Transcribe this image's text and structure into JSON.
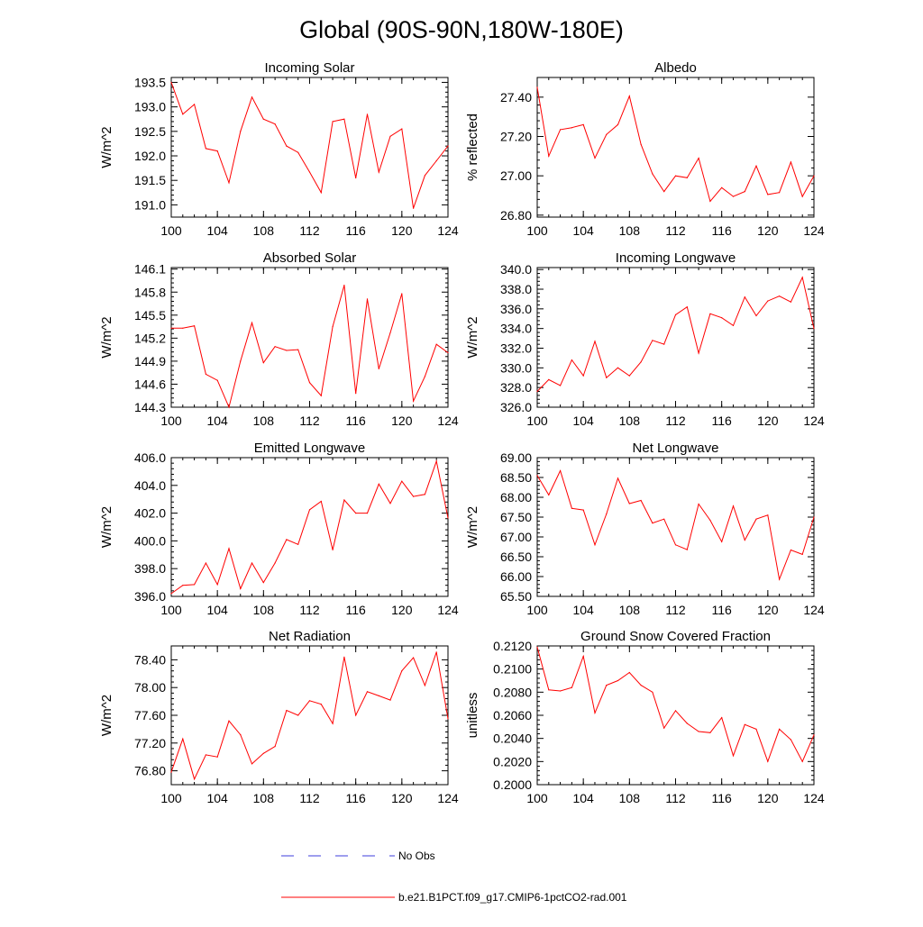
{
  "figure_title": "Global (90S-90N,180W-180E)",
  "legend": [
    {
      "label": "No Obs",
      "color": "#3c3cdc",
      "style": "dashed"
    },
    {
      "label": "b.e21.B1PCT.f09_g17.CMIP6-1pctCO2-rad.001",
      "color": "#ff0000",
      "style": "solid"
    }
  ],
  "chart_data": [
    {
      "type": "line",
      "title": "Incoming Solar",
      "ylabel": "W/m^2",
      "xlim": [
        100,
        124
      ],
      "xticks": [
        "100",
        "104",
        "108",
        "112",
        "116",
        "120",
        "124"
      ],
      "ylim": [
        190.75,
        193.6
      ],
      "yticks": [
        "191.0",
        "191.5",
        "192.0",
        "192.5",
        "193.0",
        "193.5"
      ],
      "x": [
        100,
        101,
        102,
        103,
        104,
        105,
        106,
        107,
        108,
        109,
        110,
        111,
        112,
        113,
        114,
        115,
        116,
        117,
        118,
        119,
        120,
        121,
        122,
        123,
        124
      ],
      "series": [
        {
          "color": "#ff0000",
          "values": [
            193.5,
            192.85,
            193.05,
            192.15,
            192.1,
            191.45,
            192.5,
            193.2,
            192.75,
            192.65,
            192.2,
            192.07,
            191.67,
            191.25,
            192.7,
            192.75,
            191.55,
            192.85,
            191.67,
            192.4,
            192.55,
            190.93,
            191.6,
            191.9,
            192.2
          ]
        }
      ]
    },
    {
      "type": "line",
      "title": "Albedo",
      "ylabel": "% reflected",
      "xlim": [
        100,
        124
      ],
      "xticks": [
        "100",
        "104",
        "108",
        "112",
        "116",
        "120",
        "124"
      ],
      "ylim": [
        26.79,
        27.5
      ],
      "yticks": [
        "26.80",
        "27.00",
        "27.20",
        "27.40"
      ],
      "x": [
        100,
        101,
        102,
        103,
        104,
        105,
        106,
        107,
        108,
        109,
        110,
        111,
        112,
        113,
        114,
        115,
        116,
        117,
        118,
        119,
        120,
        121,
        122,
        123,
        124
      ],
      "series": [
        {
          "color": "#ff0000",
          "values": [
            27.45,
            27.1,
            27.235,
            27.245,
            27.26,
            27.09,
            27.21,
            27.26,
            27.405,
            27.16,
            27.01,
            26.92,
            27.0,
            26.99,
            27.09,
            26.87,
            26.94,
            26.895,
            26.92,
            27.05,
            26.905,
            26.915,
            27.07,
            26.895,
            27.0
          ]
        }
      ]
    },
    {
      "type": "line",
      "title": "Absorbed Solar",
      "ylabel": "W/m^2",
      "xlim": [
        100,
        124
      ],
      "xticks": [
        "100",
        "104",
        "108",
        "112",
        "116",
        "120",
        "124"
      ],
      "ylim": [
        144.3,
        146.12
      ],
      "yticks": [
        "144.3",
        "144.6",
        "144.9",
        "145.2",
        "145.5",
        "145.8",
        "146.1"
      ],
      "x": [
        100,
        101,
        102,
        103,
        104,
        105,
        106,
        107,
        108,
        109,
        110,
        111,
        112,
        113,
        114,
        115,
        116,
        117,
        118,
        119,
        120,
        121,
        122,
        123,
        124
      ],
      "series": [
        {
          "color": "#ff0000",
          "values": [
            145.33,
            145.33,
            145.36,
            144.73,
            144.65,
            144.3,
            144.9,
            145.4,
            144.88,
            145.09,
            145.04,
            145.05,
            144.62,
            144.45,
            145.35,
            145.89,
            144.48,
            145.71,
            144.8,
            145.27,
            145.78,
            144.38,
            144.7,
            145.12,
            145.01
          ]
        }
      ]
    },
    {
      "type": "line",
      "title": "Incoming Longwave",
      "ylabel": "W/m^2",
      "xlim": [
        100,
        124
      ],
      "xticks": [
        "100",
        "104",
        "108",
        "112",
        "116",
        "120",
        "124"
      ],
      "ylim": [
        326.0,
        340.2
      ],
      "yticks": [
        "326.0",
        "328.0",
        "330.0",
        "332.0",
        "334.0",
        "336.0",
        "338.0",
        "340.0"
      ],
      "x": [
        100,
        101,
        102,
        103,
        104,
        105,
        106,
        107,
        108,
        109,
        110,
        111,
        112,
        113,
        114,
        115,
        116,
        117,
        118,
        119,
        120,
        121,
        122,
        123,
        124
      ],
      "series": [
        {
          "color": "#ff0000",
          "values": [
            327.6,
            328.8,
            328.2,
            330.8,
            329.2,
            332.7,
            329.0,
            330.0,
            329.2,
            330.6,
            332.8,
            332.4,
            335.4,
            336.2,
            331.5,
            335.5,
            335.1,
            334.3,
            337.2,
            335.3,
            336.8,
            337.3,
            336.7,
            339.2,
            334.0
          ]
        }
      ]
    },
    {
      "type": "line",
      "title": "Emitted Longwave",
      "ylabel": "W/m^2",
      "xlim": [
        100,
        124
      ],
      "xticks": [
        "100",
        "104",
        "108",
        "112",
        "116",
        "120",
        "124"
      ],
      "ylim": [
        396.0,
        406.0
      ],
      "yticks": [
        "396.0",
        "398.0",
        "400.0",
        "402.0",
        "404.0",
        "406.0"
      ],
      "x": [
        100,
        101,
        102,
        103,
        104,
        105,
        106,
        107,
        108,
        109,
        110,
        111,
        112,
        113,
        114,
        115,
        116,
        117,
        118,
        119,
        120,
        121,
        122,
        123,
        124
      ],
      "series": [
        {
          "color": "#ff0000",
          "values": [
            396.2,
            396.8,
            396.85,
            398.4,
            396.85,
            399.45,
            396.55,
            398.4,
            397.0,
            398.4,
            400.1,
            399.75,
            402.25,
            402.85,
            399.35,
            402.95,
            402.0,
            402.0,
            404.1,
            402.7,
            404.3,
            403.2,
            403.35,
            405.75,
            401.65
          ]
        }
      ]
    },
    {
      "type": "line",
      "title": "Net Longwave",
      "ylabel": "W/m^2",
      "xlim": [
        100,
        124
      ],
      "xticks": [
        "100",
        "104",
        "108",
        "112",
        "116",
        "120",
        "124"
      ],
      "ylim": [
        65.5,
        69.0
      ],
      "yticks": [
        "65.50",
        "66.00",
        "66.50",
        "67.00",
        "67.50",
        "68.00",
        "68.50",
        "69.00"
      ],
      "x": [
        100,
        101,
        102,
        103,
        104,
        105,
        106,
        107,
        108,
        109,
        110,
        111,
        112,
        113,
        114,
        115,
        116,
        117,
        118,
        119,
        120,
        121,
        122,
        123,
        124
      ],
      "series": [
        {
          "color": "#ff0000",
          "values": [
            68.55,
            68.06,
            68.67,
            67.72,
            67.68,
            66.8,
            67.58,
            68.48,
            67.84,
            67.92,
            67.35,
            67.45,
            66.8,
            66.68,
            67.83,
            67.42,
            66.88,
            67.78,
            66.92,
            67.45,
            67.55,
            65.93,
            66.67,
            66.56,
            67.5
          ]
        }
      ]
    },
    {
      "type": "line",
      "title": "Net Radiation",
      "ylabel": "W/m^2",
      "xlim": [
        100,
        124
      ],
      "xticks": [
        "100",
        "104",
        "108",
        "112",
        "116",
        "120",
        "124"
      ],
      "ylim": [
        76.6,
        78.6
      ],
      "yticks": [
        "76.80",
        "77.20",
        "77.60",
        "78.00",
        "78.40"
      ],
      "x": [
        100,
        101,
        102,
        103,
        104,
        105,
        106,
        107,
        108,
        109,
        110,
        111,
        112,
        113,
        114,
        115,
        116,
        117,
        118,
        119,
        120,
        121,
        122,
        123,
        124
      ],
      "series": [
        {
          "color": "#ff0000",
          "values": [
            76.78,
            77.26,
            76.68,
            77.03,
            77.0,
            77.52,
            77.32,
            76.9,
            77.05,
            77.15,
            77.67,
            77.6,
            77.81,
            77.76,
            77.48,
            78.44,
            77.6,
            77.94,
            77.88,
            77.82,
            78.24,
            78.43,
            78.03,
            78.51,
            77.55
          ]
        }
      ]
    },
    {
      "type": "line",
      "title": "Ground Snow Covered Fraction",
      "ylabel": "unitless",
      "xlim": [
        100,
        124
      ],
      "xticks": [
        "100",
        "104",
        "108",
        "112",
        "116",
        "120",
        "124"
      ],
      "ylim": [
        0.2,
        0.212
      ],
      "yticks": [
        "0.2000",
        "0.2020",
        "0.2040",
        "0.2060",
        "0.2080",
        "0.2100",
        "0.2120"
      ],
      "x": [
        100,
        101,
        102,
        103,
        104,
        105,
        106,
        107,
        108,
        109,
        110,
        111,
        112,
        113,
        114,
        115,
        116,
        117,
        118,
        119,
        120,
        121,
        122,
        123,
        124
      ],
      "series": [
        {
          "color": "#ff0000",
          "values": [
            0.2119,
            0.2082,
            0.2081,
            0.2084,
            0.2111,
            0.2062,
            0.2086,
            0.209,
            0.2097,
            0.2086,
            0.208,
            0.2049,
            0.2064,
            0.2053,
            0.2046,
            0.2045,
            0.2058,
            0.2025,
            0.2052,
            0.2048,
            0.202,
            0.2048,
            0.2039,
            0.202,
            0.2043
          ]
        }
      ]
    }
  ]
}
